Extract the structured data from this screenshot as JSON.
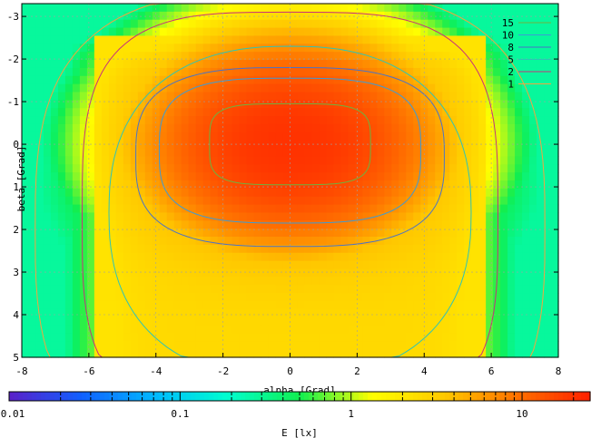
{
  "chart_data": {
    "type": "heatmap",
    "xlabel": "alpha [Grad]",
    "ylabel": "beta [Grad]",
    "colorbar_label": "E [lx]",
    "x_ticks": [
      "-8",
      "-6",
      "-4",
      "-2",
      "0",
      "2",
      "4",
      "6",
      "8"
    ],
    "y_ticks": [
      "-3",
      "-2",
      "-1",
      "0",
      "1",
      "2",
      "3",
      "4",
      "5"
    ],
    "colorbar_ticks": [
      "0.01",
      "0.1",
      "1",
      "10"
    ],
    "xlim": [
      -8,
      8
    ],
    "ylim": [
      -3.3,
      5
    ],
    "y_reversed": true,
    "colorbar_range": [
      0.01,
      25
    ],
    "colorbar_scale": "log",
    "grid": true,
    "legend_position": "top-right",
    "peak": {
      "alpha": 0,
      "beta": 0,
      "value": 20
    },
    "contours": [
      {
        "level": "15",
        "color": "#6db33f"
      },
      {
        "level": "10",
        "color": "#3c9bd6"
      },
      {
        "level": "8",
        "color": "#4a72c8"
      },
      {
        "level": "5",
        "color": "#2ec4b6"
      },
      {
        "level": "2",
        "color": "#c8327a"
      },
      {
        "level": "1",
        "color": "#f0a640"
      }
    ],
    "palette": [
      "#5a20c8",
      "#1060ff",
      "#00b8ff",
      "#00ffd0",
      "#10ee50",
      "#ffff00",
      "#ffc800",
      "#ff7000",
      "#ff2000"
    ]
  }
}
